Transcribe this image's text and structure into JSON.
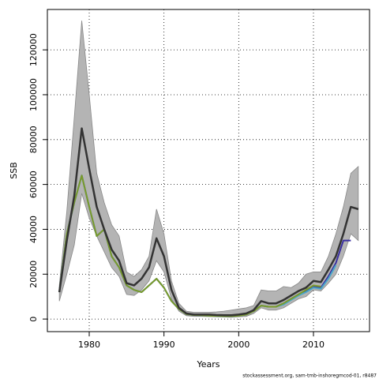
{
  "chart_data": {
    "type": "line",
    "x_label": "Years",
    "y_label": "SSB",
    "footnote": "stockassessment.org, sam-tmb-inshoregmcod-01, r8487",
    "x": [
      1976,
      1977,
      1978,
      1979,
      1980,
      1981,
      1982,
      1983,
      1984,
      1985,
      1986,
      1987,
      1988,
      1989,
      1990,
      1991,
      1992,
      1993,
      1994,
      1995,
      1996,
      1997,
      1998,
      1999,
      2000,
      2001,
      2002,
      2003,
      2004,
      2005,
      2006,
      2007,
      2008,
      2009,
      2010,
      2011,
      2012,
      2013,
      2014,
      2015,
      2016
    ],
    "xlim": [
      1974.4,
      2017.5
    ],
    "xticks": [
      1980,
      1990,
      2000,
      2010
    ],
    "ylim": [
      -5600,
      138000
    ],
    "yticks": [
      0,
      20000,
      40000,
      60000,
      80000,
      100000,
      120000
    ],
    "grid": true,
    "band": {
      "color": "#b4b4b4",
      "upper": [
        15000,
        48000,
        90000,
        133000,
        100000,
        65000,
        52000,
        42000,
        37000,
        21000,
        19000,
        22000,
        28000,
        49000,
        38000,
        17000,
        7000,
        3500,
        3000,
        3000,
        3000,
        3200,
        3500,
        4000,
        4500,
        5000,
        6000,
        13000,
        12500,
        12500,
        14500,
        14000,
        16000,
        20000,
        21000,
        21000,
        28000,
        38000,
        50000,
        65000,
        68000
      ],
      "lower": [
        8000,
        20000,
        33000,
        56000,
        45000,
        37000,
        30000,
        23000,
        19000,
        11000,
        10500,
        13000,
        17000,
        26000,
        21000,
        9000,
        3500,
        1500,
        1200,
        1200,
        1100,
        1000,
        900,
        800,
        1000,
        1200,
        2500,
        5000,
        4000,
        4000,
        5000,
        7000,
        9000,
        10000,
        13000,
        12500,
        16000,
        20000,
        28000,
        38000,
        35000
      ]
    },
    "series": [
      {
        "color": "#3a2fa0",
        "values": [
          12000,
          38000,
          52000,
          64000,
          50000,
          37000,
          40000,
          28000,
          23000,
          15000,
          13000,
          12000,
          15000,
          18000,
          14000,
          8000,
          4500,
          2200,
          1800,
          1700,
          1500,
          1400,
          1300,
          1300,
          1500,
          2000,
          3500,
          6000,
          5500,
          5500,
          7000,
          9000,
          11000,
          12500,
          14500,
          14000,
          19000,
          25000,
          35000,
          35000,
          null
        ]
      },
      {
        "color": "#4aa8c8",
        "values": [
          12000,
          38000,
          52000,
          64000,
          50000,
          37000,
          40000,
          28000,
          23000,
          15000,
          13000,
          12000,
          15000,
          18000,
          14000,
          8000,
          4500,
          2200,
          1800,
          1700,
          1500,
          1400,
          1300,
          1300,
          1500,
          2000,
          3500,
          6000,
          5500,
          5500,
          6500,
          8500,
          10500,
          12000,
          14000,
          13500,
          18000,
          24000,
          null,
          null,
          null
        ]
      },
      {
        "color": "#7a9a2a",
        "values": [
          12000,
          38000,
          52000,
          64000,
          50000,
          37000,
          40000,
          28000,
          23000,
          15000,
          13000,
          12000,
          15000,
          18000,
          14000,
          8000,
          4500,
          2200,
          1800,
          1700,
          1500,
          1400,
          1300,
          1300,
          1500,
          2000,
          3500,
          6000,
          5500,
          5500,
          7000,
          9000,
          11000,
          13000,
          15000,
          14500,
          null,
          null,
          null,
          null,
          null
        ]
      },
      {
        "color": "#333333",
        "values": [
          12000,
          35000,
          55000,
          85000,
          67000,
          50000,
          40000,
          31000,
          26000,
          16000,
          15000,
          18000,
          23000,
          36000,
          28000,
          13000,
          5000,
          2500,
          2000,
          2000,
          2000,
          1800,
          1700,
          1700,
          2000,
          2500,
          4000,
          8000,
          7000,
          7000,
          8500,
          10500,
          12500,
          14000,
          17000,
          16500,
          22000,
          28000,
          38000,
          50000,
          49000
        ]
      }
    ]
  }
}
